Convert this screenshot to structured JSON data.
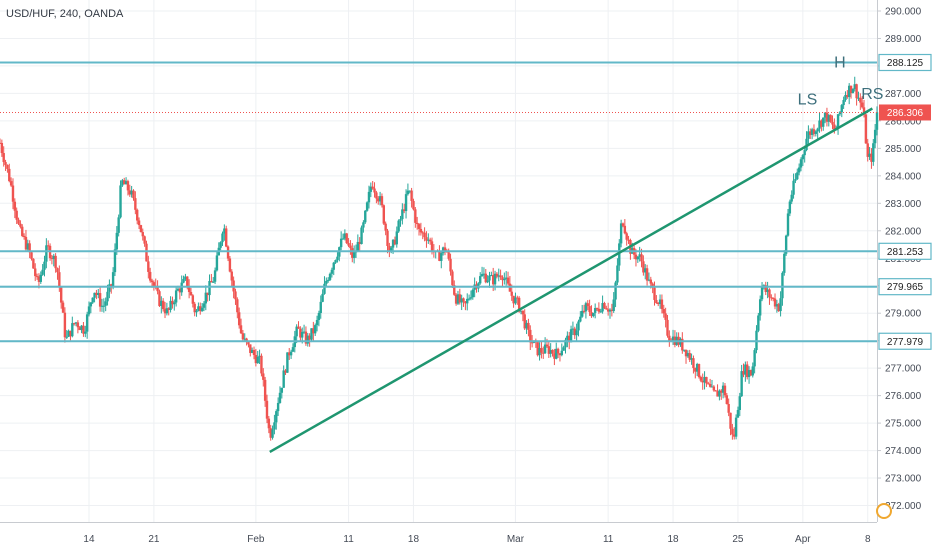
{
  "chart_data": {
    "type": "candlestick",
    "title": "USD/HUF, 240, OANDA",
    "y_axis": {
      "ticks": [
        272.0,
        273.0,
        274.0,
        275.0,
        276.0,
        277.0,
        278.0,
        279.0,
        280.0,
        281.0,
        282.0,
        283.0,
        284.0,
        285.0,
        286.0,
        287.0,
        288.0,
        289.0,
        290.0
      ],
      "tick_labels": [
        "272.000",
        "273.000",
        "274.000",
        "275.000",
        "276.000",
        "277.000",
        "278.000",
        "279.000",
        "280.000",
        "281.000",
        "282.000",
        "283.000",
        "284.000",
        "285.000",
        "286.000",
        "287.000",
        "288.000",
        "289.000",
        "290.000"
      ],
      "range": [
        271.4,
        290.4
      ]
    },
    "x_axis": {
      "labels": [
        {
          "text": "14",
          "day": 14
        },
        {
          "text": "21",
          "day": 21
        },
        {
          "text": "Feb",
          "day": 32
        },
        {
          "text": "11",
          "day": 42
        },
        {
          "text": "18",
          "day": 49
        },
        {
          "text": "Mar",
          "day": 60
        },
        {
          "text": "11",
          "day": 70
        },
        {
          "text": "18",
          "day": 77
        },
        {
          "text": "25",
          "day": 84
        },
        {
          "text": "Apr",
          "day": 91
        },
        {
          "text": "8",
          "day": 98
        }
      ],
      "range": [
        4.4,
        99.0
      ],
      "unit": "day-of-year 2019"
    },
    "levels": [
      {
        "value": 288.125,
        "label": "288.125",
        "color": "#62b8c8"
      },
      {
        "value": 281.253,
        "label": "281.253",
        "color": "#62b8c8"
      },
      {
        "value": 279.965,
        "label": "279.965",
        "color": "#62b8c8"
      },
      {
        "value": 277.979,
        "label": "277.979",
        "color": "#62b8c8"
      }
    ],
    "current_price": {
      "value": 286.306,
      "label": "286.306",
      "color": "#ef5350"
    },
    "trendline": {
      "from": {
        "day": 33.5,
        "price": 273.95
      },
      "to": {
        "day": 98.5,
        "price": 286.45
      },
      "color": "#1f9670"
    },
    "annotations": [
      {
        "text": "LS",
        "day": 91.5,
        "price": 286.6
      },
      {
        "text": "H",
        "day": 95.0,
        "price": 287.95
      },
      {
        "text": "RS",
        "day": 98.5,
        "price": 286.8
      }
    ],
    "price_path": [
      [
        4.4,
        285.2
      ],
      [
        5.5,
        283.8
      ],
      [
        6.5,
        282.0
      ],
      [
        7.5,
        281.3
      ],
      [
        8.5,
        280.0
      ],
      [
        9.5,
        281.4
      ],
      [
        10.5,
        280.8
      ],
      [
        11.5,
        278.0
      ],
      [
        12.5,
        278.7
      ],
      [
        13.5,
        278.4
      ],
      [
        14.5,
        279.9
      ],
      [
        15.5,
        279.2
      ],
      [
        16.5,
        280.1
      ],
      [
        17.5,
        283.8
      ],
      [
        18.5,
        283.4
      ],
      [
        19.5,
        282.2
      ],
      [
        20.5,
        280.5
      ],
      [
        21.5,
        279.5
      ],
      [
        22.5,
        279.0
      ],
      [
        23.5,
        279.8
      ],
      [
        24.5,
        280.2
      ],
      [
        25.5,
        279.0
      ],
      [
        26.5,
        279.6
      ],
      [
        27.5,
        280.3
      ],
      [
        28.5,
        282.3
      ],
      [
        29.5,
        280.0
      ],
      [
        30.5,
        278.1
      ],
      [
        31.5,
        277.6
      ],
      [
        32.5,
        277.2
      ],
      [
        33.5,
        274.5
      ],
      [
        34.5,
        276.0
      ],
      [
        35.5,
        277.5
      ],
      [
        36.5,
        278.4
      ],
      [
        37.5,
        278.0
      ],
      [
        38.5,
        278.5
      ],
      [
        39.5,
        280.1
      ],
      [
        40.5,
        281.0
      ],
      [
        41.5,
        281.8
      ],
      [
        42.5,
        281.0
      ],
      [
        43.5,
        282.0
      ],
      [
        44.5,
        283.8
      ],
      [
        45.5,
        283.0
      ],
      [
        46.5,
        281.1
      ],
      [
        47.5,
        282.3
      ],
      [
        48.5,
        283.5
      ],
      [
        49.5,
        282.0
      ],
      [
        50.5,
        281.8
      ],
      [
        51.5,
        281.0
      ],
      [
        52.5,
        281.4
      ],
      [
        53.5,
        279.6
      ],
      [
        54.5,
        279.2
      ],
      [
        55.5,
        280.0
      ],
      [
        56.5,
        280.4
      ],
      [
        57.5,
        280.2
      ],
      [
        58.5,
        280.5
      ],
      [
        59.5,
        279.7
      ],
      [
        60.5,
        279.2
      ],
      [
        61.5,
        278.1
      ],
      [
        62.5,
        277.6
      ],
      [
        63.5,
        277.7
      ],
      [
        64.5,
        277.5
      ],
      [
        65.5,
        278.0
      ],
      [
        66.5,
        278.4
      ],
      [
        67.5,
        279.2
      ],
      [
        68.5,
        279.0
      ],
      [
        69.5,
        279.4
      ],
      [
        70.5,
        279.0
      ],
      [
        71.5,
        282.5
      ],
      [
        72.5,
        281.2
      ],
      [
        73.5,
        281.0
      ],
      [
        74.5,
        280.0
      ],
      [
        75.5,
        279.4
      ],
      [
        76.5,
        278.2
      ],
      [
        77.5,
        278.0
      ],
      [
        78.5,
        277.6
      ],
      [
        79.5,
        277.0
      ],
      [
        80.5,
        276.4
      ],
      [
        81.5,
        276.0
      ],
      [
        82.5,
        276.3
      ],
      [
        83.5,
        274.3
      ],
      [
        84.5,
        277.0
      ],
      [
        85.5,
        276.8
      ],
      [
        86.5,
        280.0
      ],
      [
        87.5,
        279.6
      ],
      [
        88.5,
        279.2
      ],
      [
        89.5,
        283.0
      ],
      [
        90.5,
        284.2
      ],
      [
        91.5,
        285.5
      ],
      [
        92.5,
        285.8
      ],
      [
        93.5,
        286.2
      ],
      [
        94.5,
        285.6
      ],
      [
        95.5,
        287.0
      ],
      [
        96.5,
        287.3
      ],
      [
        97.5,
        286.4
      ],
      [
        98.0,
        284.6
      ],
      [
        98.5,
        284.7
      ],
      [
        99.0,
        286.3
      ]
    ],
    "grid": true,
    "colors": {
      "up": "#26a69a",
      "down": "#ef5350",
      "level": "#62b8c8",
      "trend": "#1f9670"
    }
  }
}
